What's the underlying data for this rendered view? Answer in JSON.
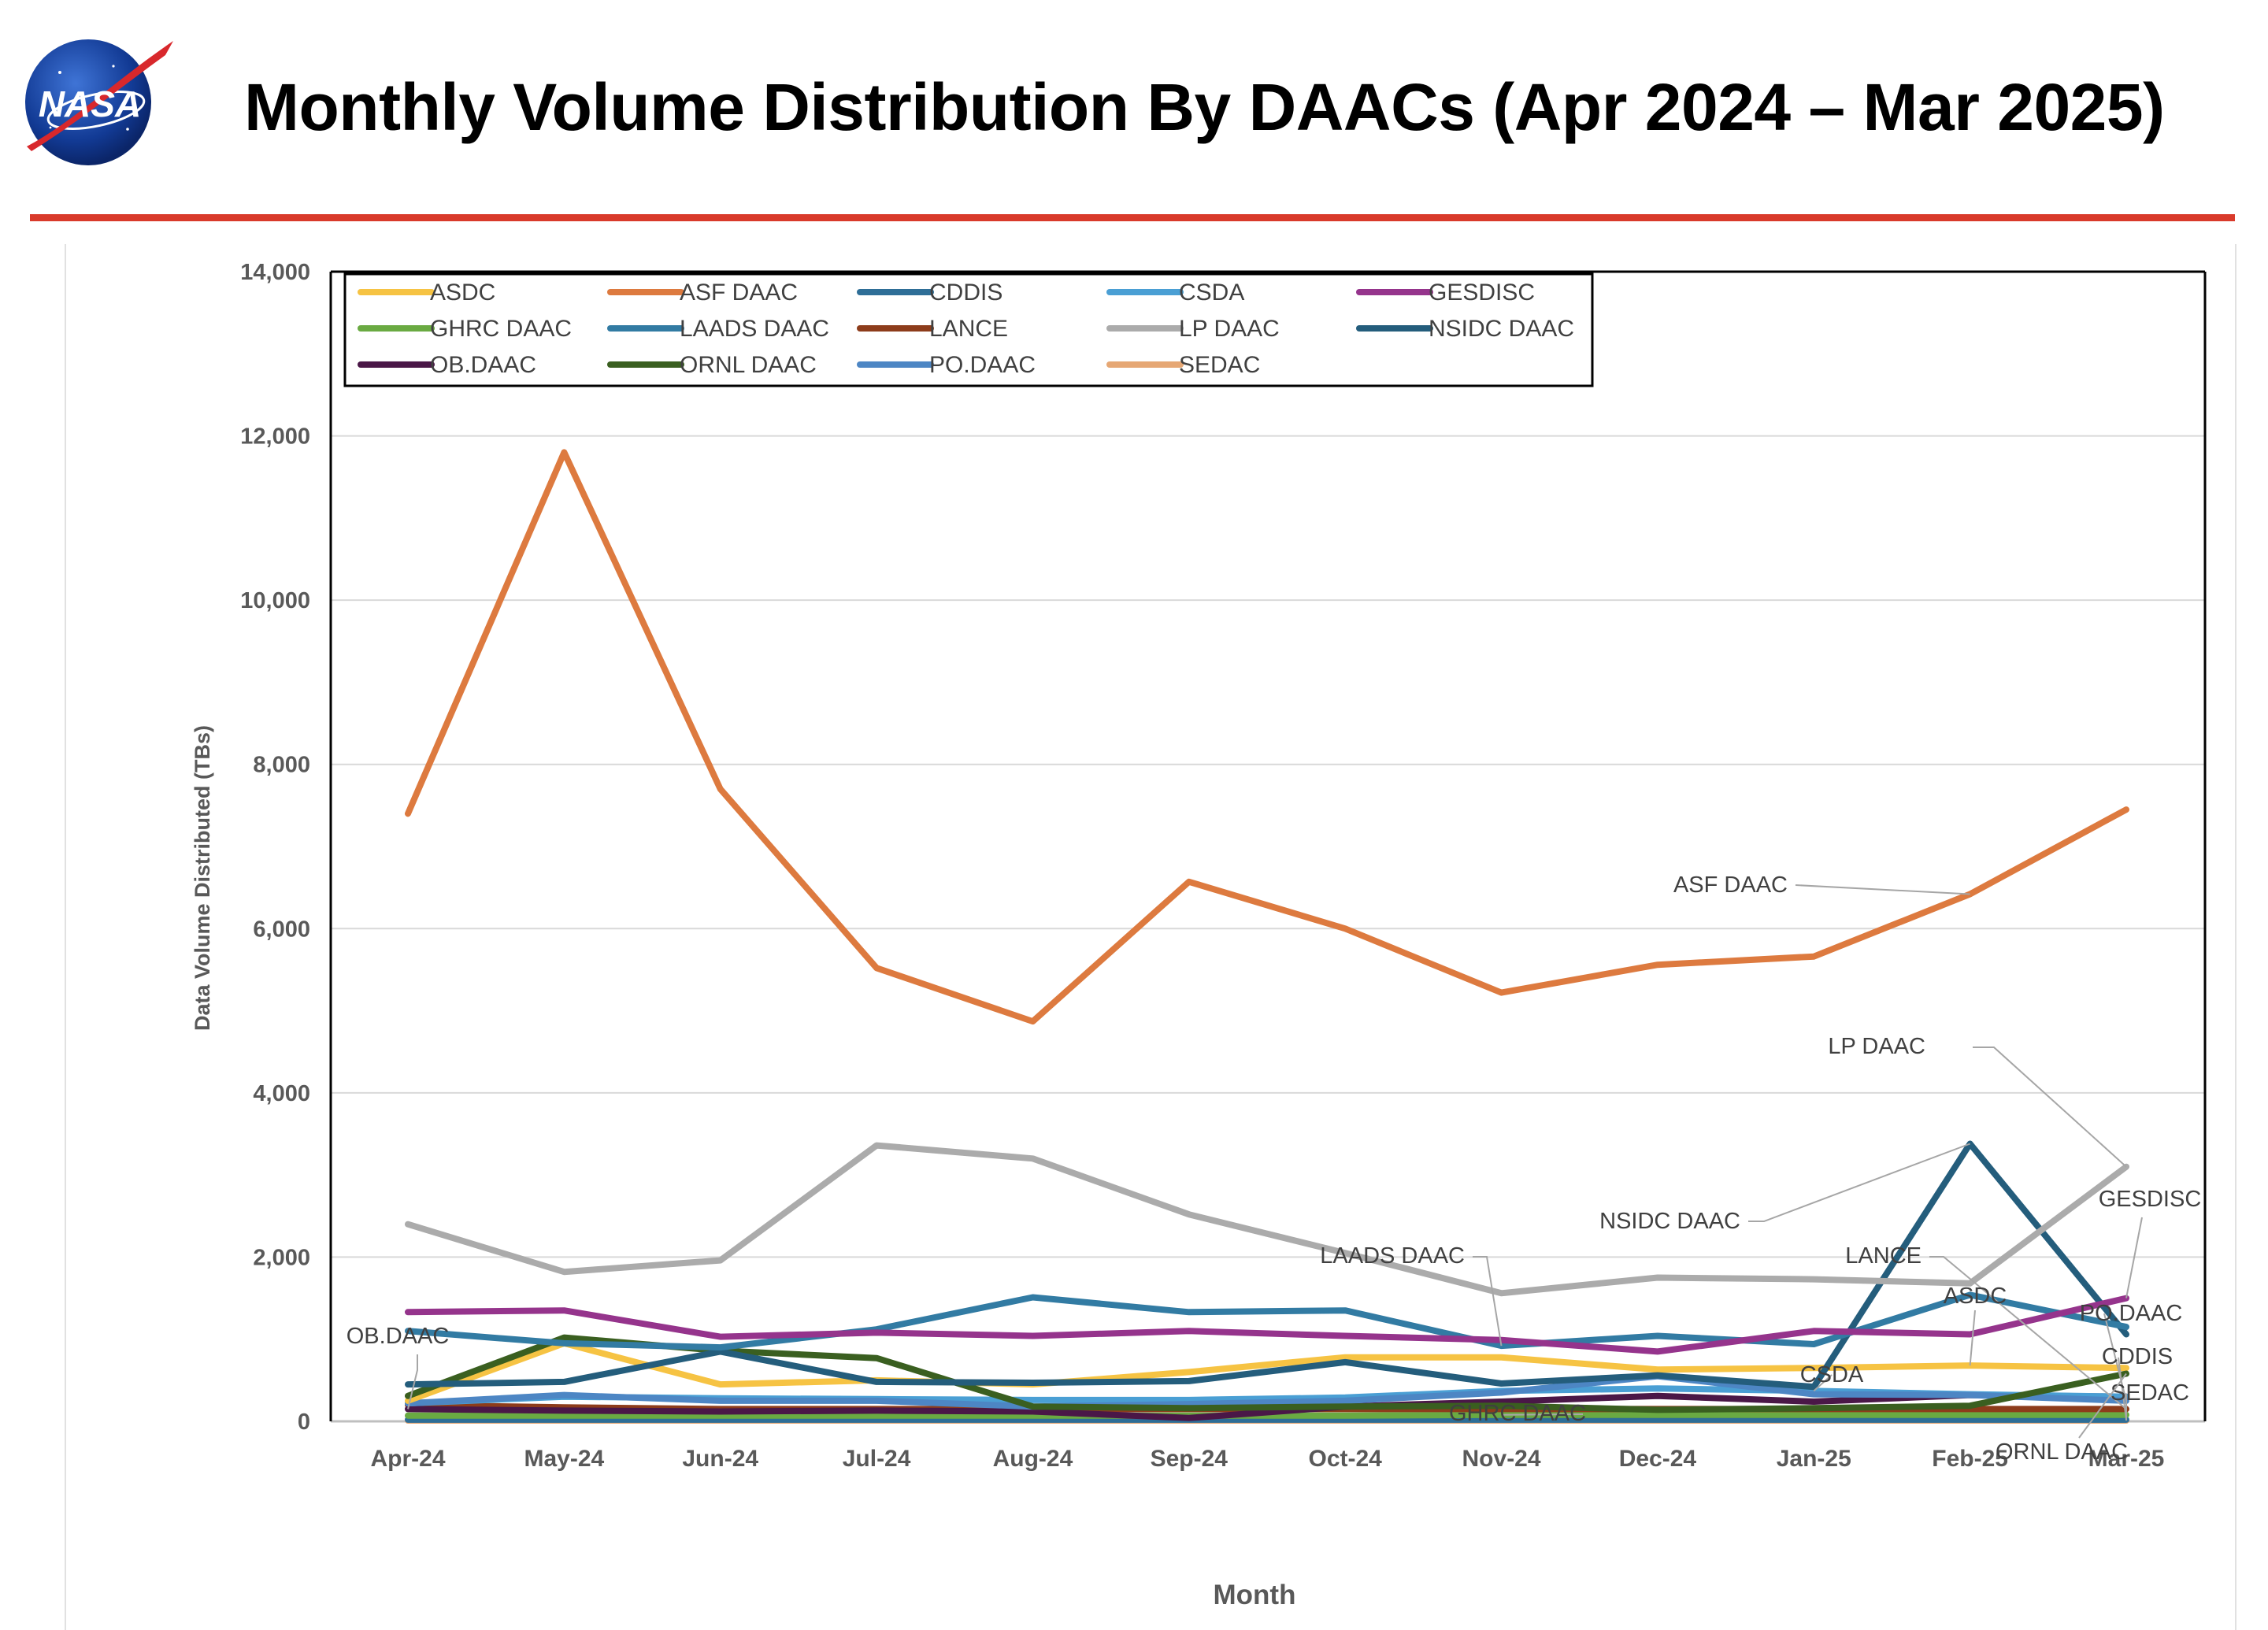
{
  "page": {
    "title": "Monthly Volume Distribution By DAACs (Apr 2024 – Mar 2025)",
    "logo_text": "NASA",
    "rule_color": "#d93a2b"
  },
  "chart_data": {
    "type": "line",
    "title": "",
    "xlabel": "Month",
    "ylabel": "Data Volume Distributed (TBs)",
    "ylim": [
      0,
      14000
    ],
    "yticks": [
      0,
      2000,
      4000,
      6000,
      8000,
      10000,
      12000,
      14000
    ],
    "ytick_labels": [
      "0",
      "2,000",
      "4,000",
      "6,000",
      "8,000",
      "10,000",
      "12,000",
      "14,000"
    ],
    "grid": true,
    "legend_position": "top-left",
    "categories": [
      "Apr-24",
      "May-24",
      "Jun-24",
      "Jul-24",
      "Aug-24",
      "Sep-24",
      "Oct-24",
      "Nov-24",
      "Dec-24",
      "Jan-25",
      "Feb-25",
      "Mar-25"
    ],
    "series": [
      {
        "name": "ASDC",
        "color": "#f6c343",
        "values": [
          250,
          950,
          450,
          500,
          450,
          600,
          780,
          780,
          630,
          650,
          680,
          650
        ]
      },
      {
        "name": "ASF DAAC",
        "color": "#dd7a3f",
        "values": [
          7400,
          11800,
          7700,
          5520,
          4870,
          6570,
          6000,
          5220,
          5560,
          5660,
          6420,
          7450
        ]
      },
      {
        "name": "CDDIS",
        "color": "#2e6e97",
        "values": [
          20,
          20,
          20,
          20,
          20,
          20,
          20,
          20,
          20,
          20,
          20,
          20
        ]
      },
      {
        "name": "CSDA",
        "color": "#4a9fd4",
        "values": [
          220,
          300,
          280,
          270,
          260,
          260,
          290,
          370,
          400,
          370,
          330,
          300
        ]
      },
      {
        "name": "GESDISC",
        "color": "#95348c",
        "values": [
          1330,
          1350,
          1030,
          1080,
          1040,
          1100,
          1040,
          990,
          850,
          1100,
          1060,
          1500
        ]
      },
      {
        "name": "GHRC DAAC",
        "color": "#6aaa42",
        "values": [
          70,
          70,
          70,
          70,
          70,
          70,
          70,
          80,
          80,
          80,
          80,
          80
        ]
      },
      {
        "name": "LAADS DAAC",
        "color": "#327ba3",
        "values": [
          1100,
          950,
          900,
          1120,
          1510,
          1330,
          1350,
          920,
          1040,
          940,
          1540,
          1150
        ]
      },
      {
        "name": "LANCE",
        "color": "#8d3c1b",
        "values": [
          200,
          170,
          150,
          150,
          150,
          150,
          150,
          150,
          150,
          150,
          150,
          150
        ]
      },
      {
        "name": "LP DAAC",
        "color": "#ababab",
        "values": [
          2400,
          1820,
          1960,
          3360,
          3200,
          2520,
          2050,
          1560,
          1750,
          1730,
          1680,
          3100
        ]
      },
      {
        "name": "NSIDC DAAC",
        "color": "#245d7c",
        "values": [
          450,
          480,
          850,
          480,
          470,
          490,
          720,
          460,
          560,
          420,
          3380,
          1060
        ]
      },
      {
        "name": "OB.DAAC",
        "color": "#4a1747",
        "values": [
          150,
          130,
          120,
          130,
          120,
          40,
          180,
          240,
          310,
          240,
          320,
          300
        ]
      },
      {
        "name": "ORNL DAAC",
        "color": "#3a5f20",
        "values": [
          310,
          1020,
          860,
          770,
          180,
          160,
          180,
          190,
          140,
          160,
          190,
          580
        ]
      },
      {
        "name": "PO.DAAC",
        "color": "#4d86c4",
        "values": [
          220,
          320,
          250,
          250,
          180,
          210,
          250,
          350,
          550,
          330,
          320,
          250
        ]
      },
      {
        "name": "SEDAC",
        "color": "#e6a774",
        "values": [
          10,
          10,
          10,
          10,
          10,
          10,
          10,
          10,
          10,
          10,
          10,
          10
        ]
      }
    ],
    "annotations": [
      {
        "text": "ASF DAAC",
        "series": "ASF DAAC"
      },
      {
        "text": "LP DAAC",
        "series": "LP DAAC"
      },
      {
        "text": "GESDISC",
        "series": "GESDISC"
      },
      {
        "text": "NSIDC DAAC",
        "series": "NSIDC DAAC"
      },
      {
        "text": "LAADS DAAC",
        "series": "LAADS DAAC"
      },
      {
        "text": "LANCE",
        "series": "LANCE"
      },
      {
        "text": "ASDC",
        "series": "ASDC"
      },
      {
        "text": "PO.DAAC",
        "series": "PO.DAAC"
      },
      {
        "text": "CDDIS",
        "series": "CDDIS"
      },
      {
        "text": "SEDAC",
        "series": "SEDAC"
      },
      {
        "text": "CSDA",
        "series": "CSDA"
      },
      {
        "text": "ORNL DAAC",
        "series": "ORNL DAAC"
      },
      {
        "text": "GHRC DAAC",
        "series": "GHRC DAAC"
      },
      {
        "text": "OB.DAAC",
        "series": "OB.DAAC"
      }
    ]
  }
}
